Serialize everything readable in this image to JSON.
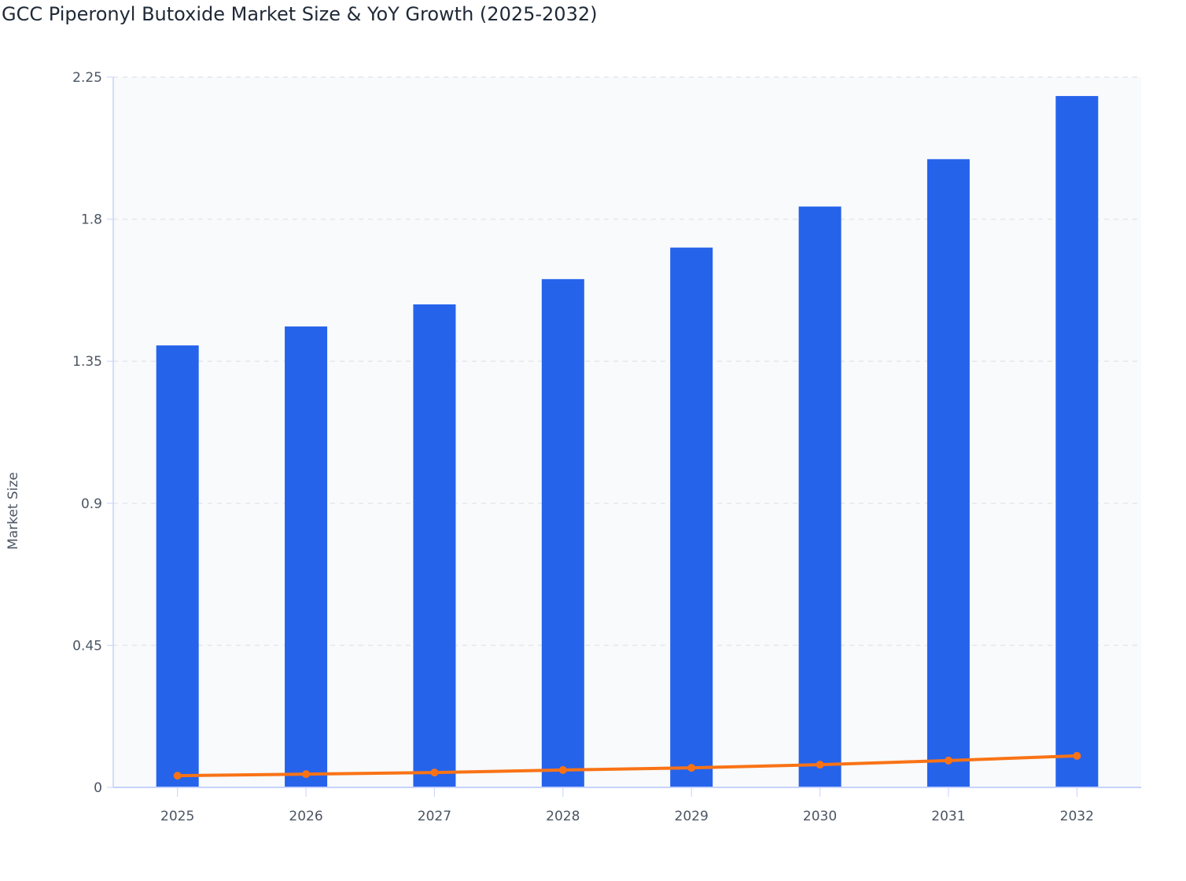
{
  "title": "GCC Piperonyl Butoxide Market Size & YoY Growth (2025-2032)",
  "chart_data": {
    "type": "bar",
    "title": "GCC Piperonyl Butoxide Market Size & YoY Growth (2025-2032)",
    "xlabel": "",
    "ylabel": "Market Size",
    "ylim": [
      0,
      2.25
    ],
    "yticks": [
      "0",
      "0.45",
      "0.9",
      "1.35",
      "1.8",
      "2.25"
    ],
    "categories": [
      "2025",
      "2026",
      "2027",
      "2028",
      "2029",
      "2030",
      "2031",
      "2032"
    ],
    "series": [
      {
        "type": "bar",
        "color": "#2563eb",
        "values": [
          1.4,
          1.46,
          1.53,
          1.61,
          1.71,
          1.84,
          1.99,
          2.19
        ]
      },
      {
        "type": "line",
        "color": "#f97316",
        "values": [
          0.037,
          0.042,
          0.047,
          0.055,
          0.062,
          0.072,
          0.085,
          0.1
        ]
      }
    ],
    "grid": true,
    "legend": "none"
  }
}
